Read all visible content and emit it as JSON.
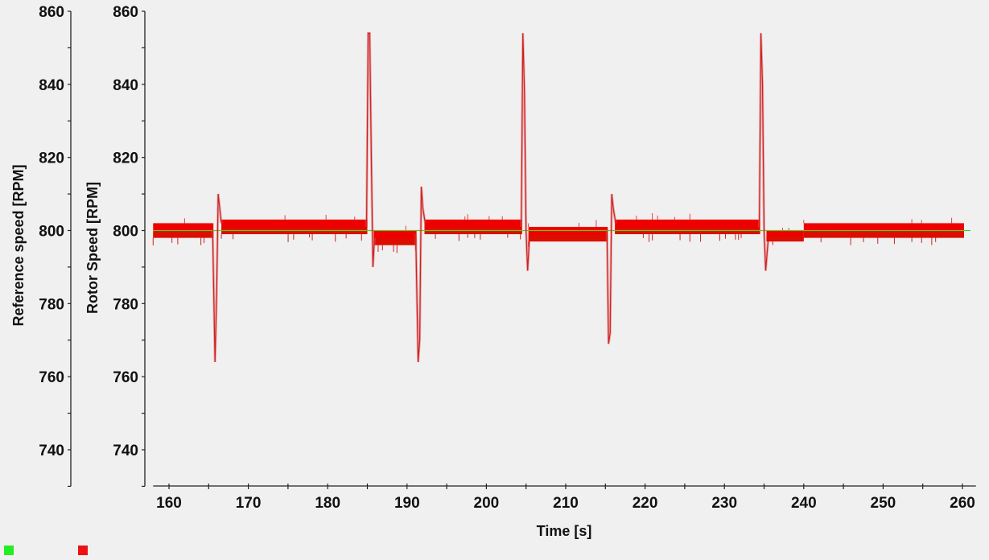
{
  "chart_data": {
    "type": "line",
    "title": "",
    "xlabel": "Time [s]",
    "ylabels": [
      "Reference speed [RPM]",
      "Rotor Speed [RPM]"
    ],
    "xlim": [
      158,
      261.7
    ],
    "ylim": [
      730,
      860
    ],
    "x_ticks": [
      160,
      170,
      180,
      190,
      200,
      210,
      220,
      230,
      240,
      250,
      260
    ],
    "y_ticks": [
      740,
      760,
      780,
      800,
      820,
      840,
      860
    ],
    "grid": false,
    "legend_position": "bottom-left",
    "series": [
      {
        "name": "Reference speed",
        "color": "#22dd22",
        "x": [
          158,
          261
        ],
        "values": [
          800,
          800
        ]
      },
      {
        "name": "Rotor speed",
        "color": "#ee0000",
        "band_segments": [
          {
            "x0": 158.0,
            "x1": 165.6,
            "low": 798,
            "high": 802
          },
          {
            "x0": 166.6,
            "x1": 185.0,
            "low": 799,
            "high": 803
          },
          {
            "x0": 185.8,
            "x1": 191.2,
            "low": 796,
            "high": 800
          },
          {
            "x0": 192.2,
            "x1": 204.5,
            "low": 799,
            "high": 803
          },
          {
            "x0": 205.3,
            "x1": 215.3,
            "low": 797,
            "high": 801
          },
          {
            "x0": 216.2,
            "x1": 234.5,
            "low": 799,
            "high": 803
          },
          {
            "x0": 235.3,
            "x1": 240.0,
            "low": 797,
            "high": 800
          },
          {
            "x0": 240.0,
            "x1": 260.2,
            "low": 798,
            "high": 802
          }
        ],
        "transients": [
          {
            "x": [
              165.5,
              165.8,
              166.0,
              166.2,
              166.4,
              166.6
            ],
            "values": [
              800,
              764,
              782,
              810,
              806,
              802
            ]
          },
          {
            "x": [
              184.9,
              185.1,
              185.3,
              185.5,
              185.7,
              185.9
            ],
            "values": [
              801,
              854,
              854,
              820,
              790,
              798
            ]
          },
          {
            "x": [
              191.1,
              191.4,
              191.6,
              191.8,
              192.0,
              192.3
            ],
            "values": [
              799,
              764,
              770,
              812,
              806,
              802
            ]
          },
          {
            "x": [
              204.4,
              204.6,
              204.8,
              205.0,
              205.2,
              205.4
            ],
            "values": [
              801,
              854,
              838,
              800,
              789,
              797
            ]
          },
          {
            "x": [
              215.2,
              215.4,
              215.6,
              215.8,
              216.0,
              216.3
            ],
            "values": [
              800,
              769,
              772,
              810,
              806,
              802
            ]
          },
          {
            "x": [
              234.4,
              234.6,
              234.8,
              235.0,
              235.2,
              235.5
            ],
            "values": [
              801,
              854,
              840,
              800,
              789,
              797
            ]
          }
        ]
      }
    ]
  },
  "legend": [
    {
      "label": "",
      "color": "#22ee22"
    },
    {
      "label": "",
      "color": "#ee1111"
    }
  ]
}
